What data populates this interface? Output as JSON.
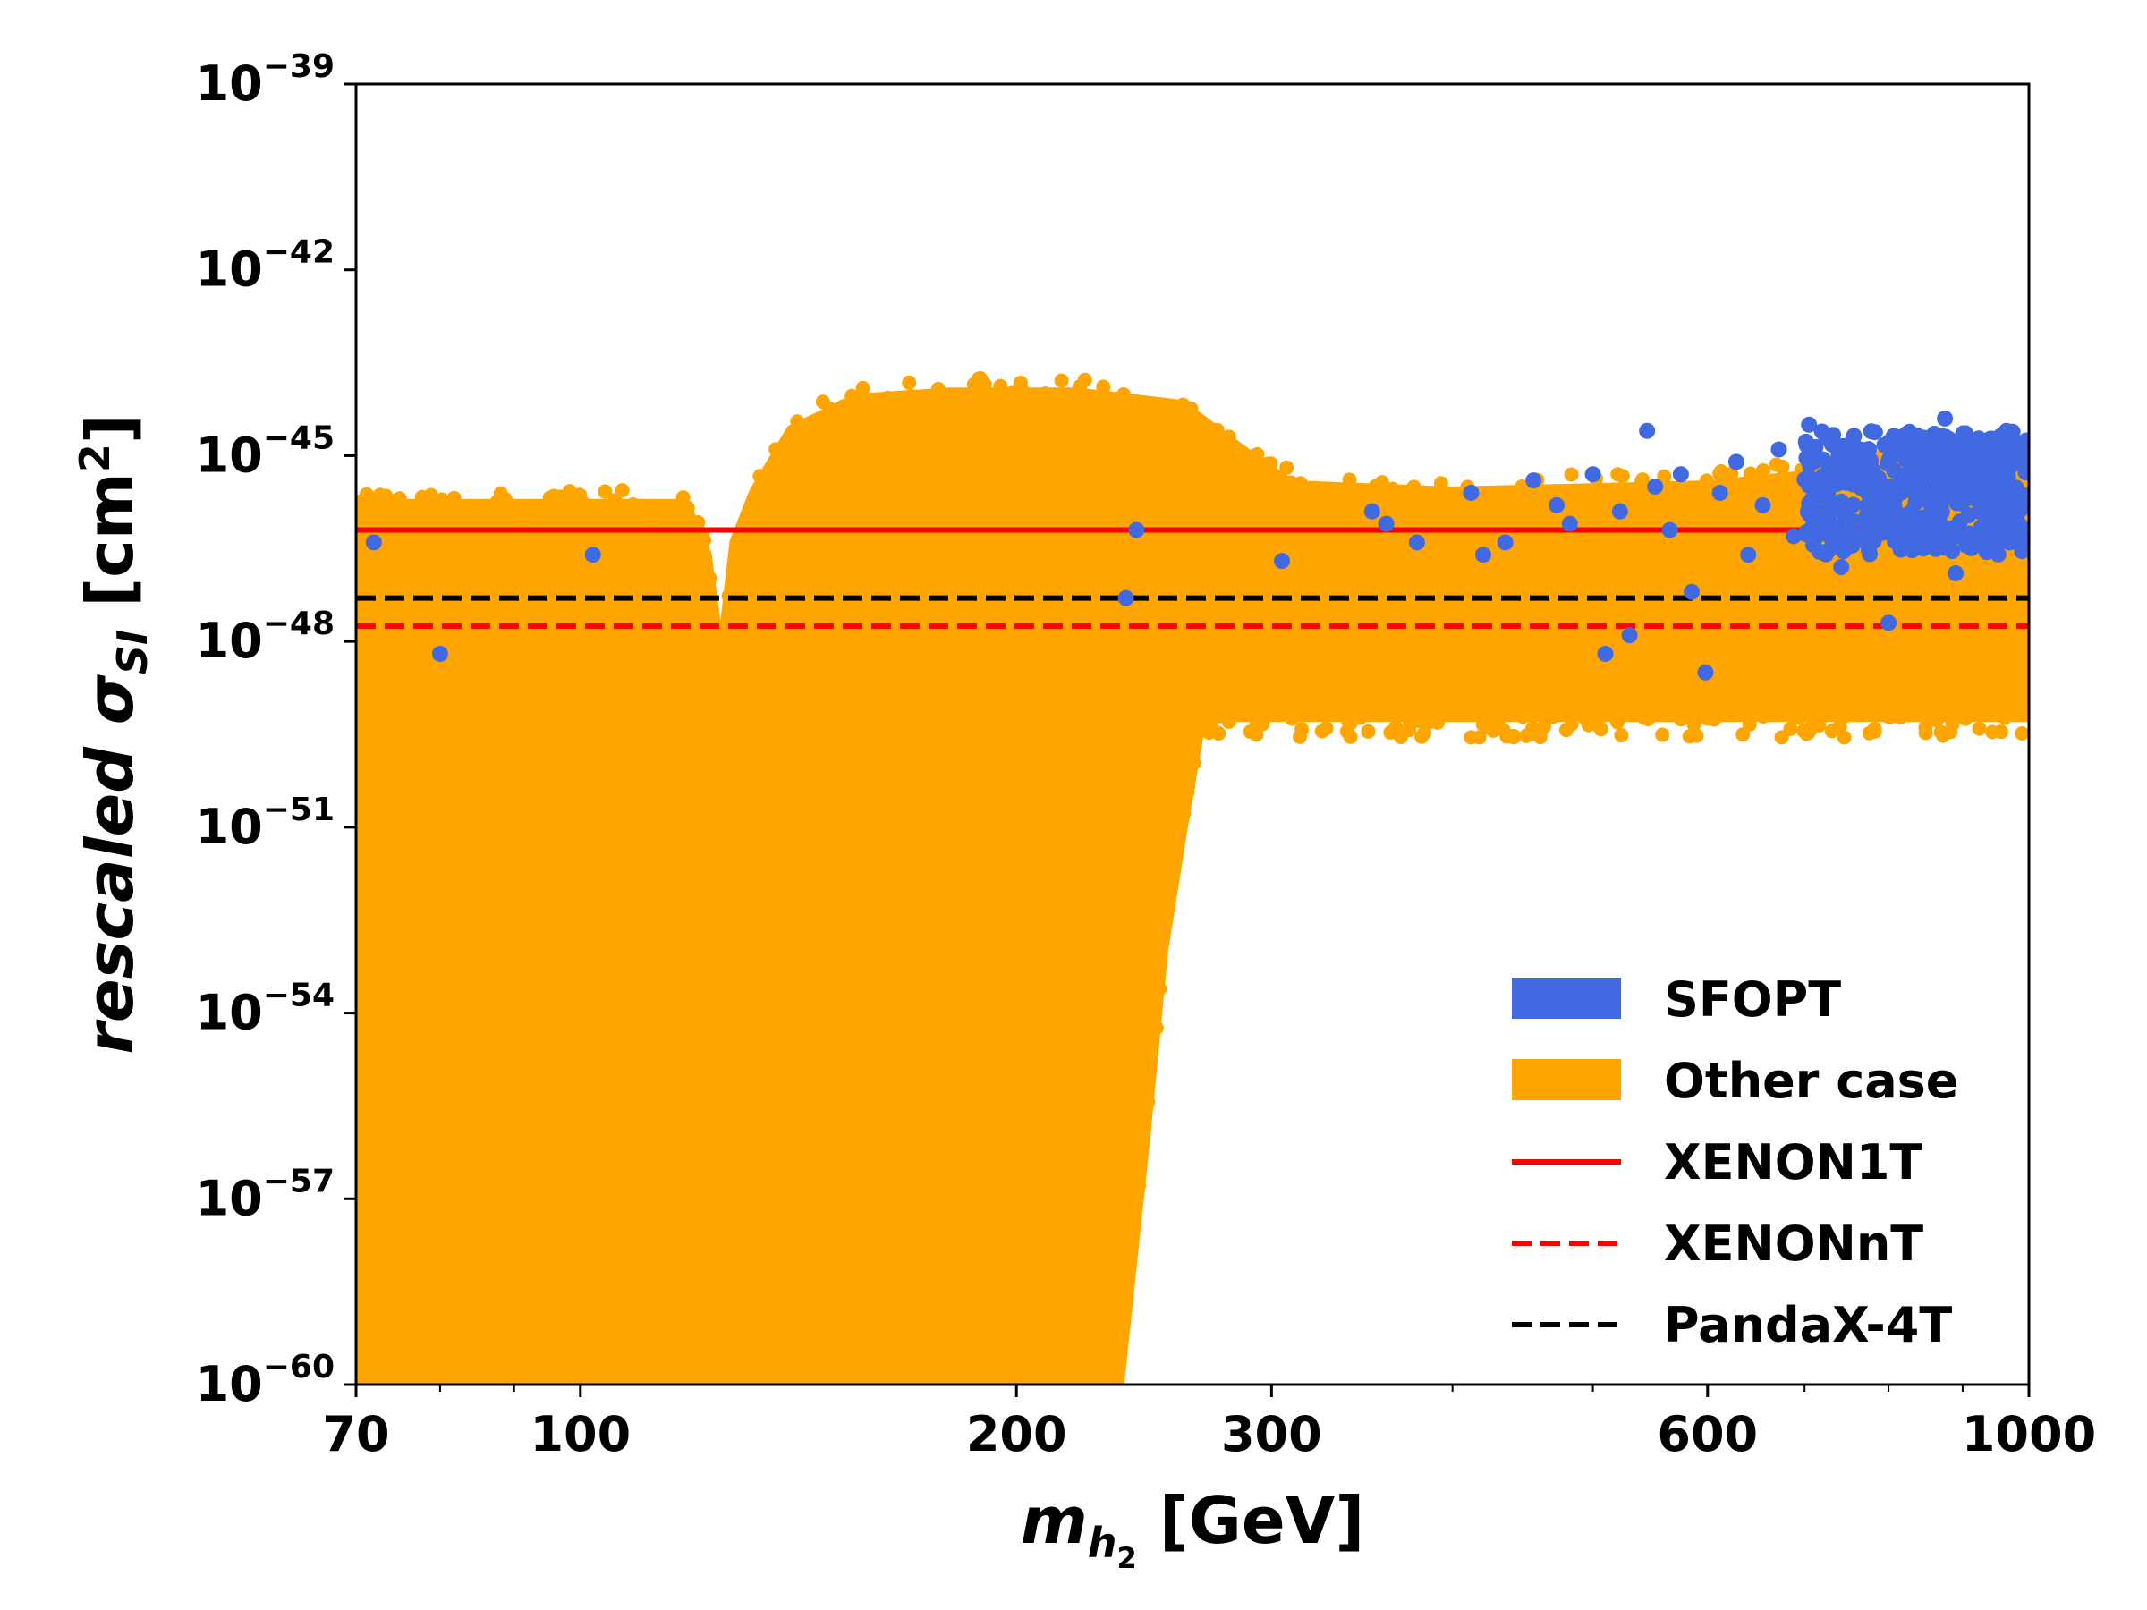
{
  "chart_data": {
    "type": "scatter",
    "title": "",
    "xlabel": {
      "main": "m",
      "sub": "h",
      "subsub": "2",
      "unit": " [GeV]"
    },
    "ylabel": {
      "prefix": "rescaled ",
      "sigma": "σ",
      "sub": "SI",
      "unit_open": " [cm",
      "unit_exp": "2",
      "unit_close": "]"
    },
    "xscale": "log",
    "yscale": "log",
    "xlim": [
      70,
      1000
    ],
    "ylim_exp": [
      -60,
      -39
    ],
    "x_ticks": [
      {
        "value": 70,
        "label": "70"
      },
      {
        "value": 100,
        "label": "100"
      },
      {
        "value": 200,
        "label": "200"
      },
      {
        "value": 300,
        "label": "300"
      },
      {
        "value": 600,
        "label": "600"
      },
      {
        "value": 1000,
        "label": "1000"
      }
    ],
    "y_ticks": [
      {
        "exp": -39,
        "base": "10",
        "sup": "−39"
      },
      {
        "exp": -42,
        "base": "10",
        "sup": "−42"
      },
      {
        "exp": -45,
        "base": "10",
        "sup": "−45"
      },
      {
        "exp": -48,
        "base": "10",
        "sup": "−48"
      },
      {
        "exp": -51,
        "base": "10",
        "sup": "−51"
      },
      {
        "exp": -54,
        "base": "10",
        "sup": "−54"
      },
      {
        "exp": -57,
        "base": "10",
        "sup": "−57"
      },
      {
        "exp": -60,
        "base": "10",
        "sup": "−60"
      }
    ],
    "series": [
      {
        "name": "Other case",
        "color": "#FFA500",
        "region_upper_log10": [
          {
            "x": 70,
            "y": -45.8
          },
          {
            "x": 80,
            "y": -45.8
          },
          {
            "x": 100,
            "y": -45.8
          },
          {
            "x": 118,
            "y": -45.8
          },
          {
            "x": 122,
            "y": -46.6
          },
          {
            "x": 125,
            "y": -48.5
          },
          {
            "x": 128,
            "y": -46.4
          },
          {
            "x": 132,
            "y": -45.6
          },
          {
            "x": 140,
            "y": -44.6
          },
          {
            "x": 155,
            "y": -44.1
          },
          {
            "x": 180,
            "y": -44.0
          },
          {
            "x": 220,
            "y": -44.0
          },
          {
            "x": 260,
            "y": -44.2
          },
          {
            "x": 285,
            "y": -44.9
          },
          {
            "x": 310,
            "y": -45.5
          },
          {
            "x": 400,
            "y": -45.6
          },
          {
            "x": 600,
            "y": -45.5
          },
          {
            "x": 800,
            "y": -45.2
          },
          {
            "x": 1000,
            "y": -44.9
          }
        ],
        "region_lower_log10": [
          {
            "x": 70,
            "y": -60
          },
          {
            "x": 100,
            "y": -60
          },
          {
            "x": 130,
            "y": -60
          },
          {
            "x": 200,
            "y": -60
          },
          {
            "x": 235,
            "y": -60
          },
          {
            "x": 245,
            "y": -56.0
          },
          {
            "x": 252,
            "y": -53.0
          },
          {
            "x": 260,
            "y": -51.0
          },
          {
            "x": 268,
            "y": -49.2
          },
          {
            "x": 285,
            "y": -49.2
          },
          {
            "x": 600,
            "y": -49.2
          },
          {
            "x": 1000,
            "y": -49.2
          }
        ]
      },
      {
        "name": "SFOPT",
        "color": "#4169E1",
        "points": [
          {
            "x": 72,
            "y": -46.4
          },
          {
            "x": 80,
            "y": -48.2
          },
          {
            "x": 102,
            "y": -46.6
          },
          {
            "x": 238,
            "y": -47.3
          },
          {
            "x": 242,
            "y": -46.2
          },
          {
            "x": 305,
            "y": -46.7
          },
          {
            "x": 352,
            "y": -45.9
          },
          {
            "x": 360,
            "y": -46.1
          },
          {
            "x": 378,
            "y": -46.4
          },
          {
            "x": 412,
            "y": -45.6
          },
          {
            "x": 420,
            "y": -46.6
          },
          {
            "x": 435,
            "y": -46.4
          },
          {
            "x": 455,
            "y": -45.4
          },
          {
            "x": 472,
            "y": -45.8
          },
          {
            "x": 482,
            "y": -46.1
          },
          {
            "x": 500,
            "y": -45.3
          },
          {
            "x": 510,
            "y": -48.2
          },
          {
            "x": 522,
            "y": -45.9
          },
          {
            "x": 530,
            "y": -47.9
          },
          {
            "x": 545,
            "y": -44.6
          },
          {
            "x": 552,
            "y": -45.5
          },
          {
            "x": 565,
            "y": -46.2
          },
          {
            "x": 575,
            "y": -45.3
          },
          {
            "x": 585,
            "y": -47.2
          },
          {
            "x": 598,
            "y": -48.5
          },
          {
            "x": 612,
            "y": -45.6
          },
          {
            "x": 628,
            "y": -45.1
          },
          {
            "x": 640,
            "y": -46.6
          },
          {
            "x": 655,
            "y": -45.8
          },
          {
            "x": 672,
            "y": -44.9
          },
          {
            "x": 688,
            "y": -46.3
          },
          {
            "x": 705,
            "y": -44.5
          },
          {
            "x": 712,
            "y": -45.9
          },
          {
            "x": 728,
            "y": -45.2
          },
          {
            "x": 742,
            "y": -46.8
          },
          {
            "x": 756,
            "y": -44.8
          },
          {
            "x": 770,
            "y": -46.1
          },
          {
            "x": 785,
            "y": -45.4
          },
          {
            "x": 800,
            "y": -47.7
          },
          {
            "x": 815,
            "y": -44.7
          },
          {
            "x": 830,
            "y": -45.9
          },
          {
            "x": 845,
            "y": -46.5
          },
          {
            "x": 860,
            "y": -45.1
          },
          {
            "x": 875,
            "y": -44.4
          },
          {
            "x": 890,
            "y": -46.9
          },
          {
            "x": 905,
            "y": -45.6
          },
          {
            "x": 920,
            "y": -44.9
          },
          {
            "x": 935,
            "y": -46.2
          },
          {
            "x": 950,
            "y": -45.3
          },
          {
            "x": 965,
            "y": -44.6
          },
          {
            "x": 980,
            "y": -46.0
          },
          {
            "x": 995,
            "y": -45.0
          }
        ]
      }
    ],
    "reference_lines": [
      {
        "name": "XENON1T",
        "y_exp": -46.2,
        "color": "#FF0000",
        "style": "solid"
      },
      {
        "name": "PandaX-4T",
        "y_exp": -47.3,
        "color": "#000000",
        "style": "dashed"
      },
      {
        "name": "XENONnT",
        "y_exp": -47.75,
        "color": "#FF0000",
        "style": "dashed"
      }
    ],
    "legend": {
      "position": "lower-right",
      "entries": [
        {
          "label": "SFOPT",
          "color": "#4169E1",
          "kind": "patch"
        },
        {
          "label": "Other case",
          "color": "#FFA500",
          "kind": "patch"
        },
        {
          "label": "XENON1T",
          "color": "#FF0000",
          "kind": "line-solid"
        },
        {
          "label": "XENONnT",
          "color": "#FF0000",
          "kind": "line-dashed"
        },
        {
          "label": "PandaX-4T",
          "color": "#000000",
          "kind": "line-dashed"
        }
      ]
    },
    "grid": false
  }
}
